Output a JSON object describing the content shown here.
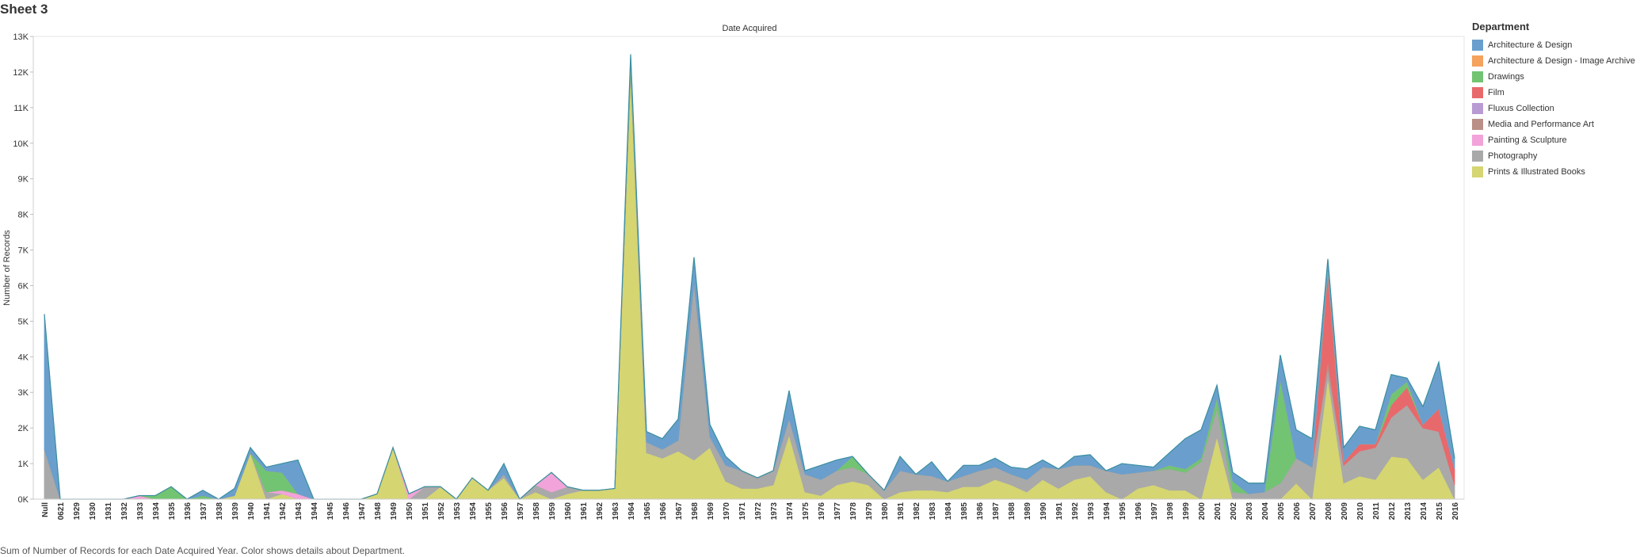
{
  "sheet_title": "Sheet 3",
  "caption": "Sum of Number of Records for each Date Acquired Year.  Color shows details about Department.",
  "legend": {
    "title": "Department",
    "items": [
      {
        "label": "Architecture & Design",
        "color": "#6a9fcd"
      },
      {
        "label": "Architecture & Design - Image Archive",
        "color": "#f5a25d"
      },
      {
        "label": "Drawings",
        "color": "#72c472"
      },
      {
        "label": "Film",
        "color": "#e8696b"
      },
      {
        "label": "Fluxus Collection",
        "color": "#b99bd3"
      },
      {
        "label": "Media and Performance Art",
        "color": "#b98f87"
      },
      {
        "label": "Painting & Sculpture",
        "color": "#f2a3d9"
      },
      {
        "label": "Photography",
        "color": "#a9a9a9"
      },
      {
        "label": "Prints & Illustrated Books",
        "color": "#d5d572"
      }
    ]
  },
  "chart_data": {
    "type": "area",
    "stacked": true,
    "title": "Date Acquired",
    "xlabel": "",
    "ylabel": "Number of Records",
    "ylim": [
      0,
      13000
    ],
    "y_ticks": [
      "0K",
      "1K",
      "2K",
      "3K",
      "4K",
      "5K",
      "6K",
      "7K",
      "8K",
      "9K",
      "10K",
      "11K",
      "12K",
      "13K"
    ],
    "grid": false,
    "legend_position": "right",
    "categories": [
      "Null",
      "0621",
      "1929",
      "1930",
      "1931",
      "1932",
      "1933",
      "1934",
      "1935",
      "1936",
      "1937",
      "1938",
      "1939",
      "1940",
      "1941",
      "1942",
      "1943",
      "1944",
      "1945",
      "1946",
      "1947",
      "1948",
      "1949",
      "1950",
      "1951",
      "1952",
      "1953",
      "1954",
      "1955",
      "1956",
      "1957",
      "1958",
      "1959",
      "1960",
      "1961",
      "1962",
      "1963",
      "1964",
      "1965",
      "1966",
      "1967",
      "1968",
      "1969",
      "1970",
      "1971",
      "1972",
      "1973",
      "1974",
      "1975",
      "1976",
      "1977",
      "1978",
      "1979",
      "1980",
      "1981",
      "1982",
      "1983",
      "1984",
      "1985",
      "1986",
      "1987",
      "1988",
      "1989",
      "1990",
      "1991",
      "1992",
      "1993",
      "1994",
      "1995",
      "1996",
      "1997",
      "1998",
      "1999",
      "2000",
      "2001",
      "2002",
      "2003",
      "2004",
      "2005",
      "2006",
      "2007",
      "2008",
      "2009",
      "2010",
      "2011",
      "2012",
      "2013",
      "2014",
      "2015",
      "2016"
    ],
    "x_labels": [
      "Null",
      "0621",
      "1929",
      "1930",
      "1931",
      "1932",
      "1933",
      "1934",
      "1935",
      "1936",
      "1937",
      "1938",
      "1939",
      "1940",
      "1941",
      "1942",
      "1943",
      "1944",
      "1945",
      "1946",
      "1947",
      "1948",
      "1949",
      "1950",
      "1951",
      "1952",
      "1953",
      "1954",
      "1955",
      "1956",
      "1957",
      "1958",
      "1959",
      "1960",
      "1961",
      "1962",
      "1963",
      "1964",
      "1965",
      "1966",
      "1967",
      "1968",
      "1969",
      "1970",
      "1971",
      "1972",
      "1973",
      "1974",
      "1975",
      "1976",
      "1977",
      "1978",
      "1979",
      "1980",
      "1981",
      "1982",
      "1983",
      "1984",
      "1985",
      "1986",
      "1987",
      "1988",
      "1989",
      "1990",
      "1991",
      "1992",
      "1993",
      "1994",
      "1995",
      "1996",
      "1997",
      "1998",
      "1999",
      "2000",
      "2001",
      "2002",
      "2003",
      "2004",
      "2005",
      "2006",
      "2007",
      "2008",
      "2009",
      "2010",
      "2011",
      "2012",
      "2013",
      "2014",
      "2015",
      "2016"
    ],
    "series": [
      {
        "name": "Prints & Illustrated Books",
        "color": "#d5d572",
        "values": [
          0,
          0,
          0,
          0,
          0,
          0,
          0,
          0,
          0,
          0,
          0,
          0,
          100,
          1300,
          0,
          150,
          0,
          0,
          0,
          0,
          0,
          150,
          1450,
          0,
          0,
          350,
          0,
          600,
          250,
          600,
          0,
          200,
          0,
          150,
          250,
          250,
          300,
          12000,
          1300,
          1150,
          1350,
          1100,
          1450,
          500,
          300,
          300,
          400,
          1800,
          200,
          100,
          400,
          500,
          400,
          0,
          200,
          250,
          250,
          200,
          350,
          350,
          550,
          400,
          200,
          550,
          300,
          550,
          650,
          200,
          0,
          300,
          400,
          250,
          250,
          0,
          1750,
          0,
          0,
          0,
          0,
          450,
          0,
          3400,
          450,
          650,
          550,
          1200,
          1150,
          550,
          900,
          0
        ]
      },
      {
        "name": "Photography",
        "color": "#a9a9a9",
        "values": [
          1400,
          0,
          0,
          0,
          0,
          0,
          0,
          0,
          0,
          0,
          0,
          0,
          0,
          0,
          200,
          0,
          0,
          0,
          0,
          0,
          0,
          0,
          0,
          0,
          350,
          0,
          0,
          0,
          0,
          100,
          0,
          200,
          200,
          200,
          0,
          0,
          0,
          0,
          300,
          250,
          300,
          5000,
          300,
          450,
          500,
          300,
          400,
          450,
          500,
          450,
          400,
          400,
          300,
          250,
          600,
          450,
          400,
          300,
          300,
          450,
          350,
          300,
          350,
          350,
          550,
          400,
          300,
          600,
          700,
          450,
          400,
          600,
          500,
          1050,
          800,
          200,
          150,
          200,
          450,
          700,
          900,
          250,
          500,
          700,
          900,
          1100,
          1500,
          1450,
          1000,
          400
        ]
      },
      {
        "name": "Painting & Sculpture",
        "color": "#f2a3d9",
        "values": [
          0,
          0,
          0,
          0,
          0,
          0,
          100,
          0,
          0,
          0,
          0,
          0,
          0,
          0,
          0,
          100,
          150,
          0,
          0,
          0,
          0,
          0,
          0,
          150,
          0,
          0,
          0,
          0,
          0,
          0,
          0,
          0,
          550,
          0,
          0,
          0,
          0,
          0,
          0,
          0,
          0,
          0,
          0,
          0,
          0,
          0,
          0,
          0,
          0,
          0,
          0,
          0,
          0,
          0,
          0,
          0,
          0,
          0,
          0,
          0,
          0,
          0,
          0,
          0,
          0,
          0,
          0,
          0,
          0,
          0,
          0,
          0,
          0,
          0,
          0,
          0,
          0,
          0,
          0,
          0,
          0,
          0,
          0,
          0,
          0,
          0,
          0,
          0,
          0,
          0
        ]
      },
      {
        "name": "Media and Performance Art",
        "color": "#b98f87",
        "values": [
          0,
          0,
          0,
          0,
          0,
          0,
          0,
          0,
          0,
          0,
          0,
          0,
          0,
          0,
          0,
          0,
          0,
          0,
          0,
          0,
          0,
          0,
          0,
          0,
          0,
          0,
          0,
          0,
          0,
          0,
          0,
          0,
          0,
          0,
          0,
          0,
          0,
          0,
          0,
          0,
          0,
          0,
          0,
          0,
          0,
          0,
          0,
          0,
          0,
          0,
          0,
          0,
          0,
          0,
          0,
          0,
          0,
          0,
          0,
          0,
          0,
          0,
          0,
          0,
          0,
          0,
          0,
          0,
          0,
          0,
          0,
          0,
          0,
          0,
          0,
          0,
          0,
          0,
          0,
          0,
          0,
          250,
          0,
          0,
          0,
          0,
          0,
          0,
          0,
          0
        ]
      },
      {
        "name": "Film",
        "color": "#e8696b",
        "values": [
          0,
          0,
          0,
          0,
          0,
          0,
          0,
          0,
          0,
          0,
          0,
          0,
          0,
          0,
          0,
          0,
          0,
          0,
          0,
          0,
          0,
          0,
          0,
          0,
          0,
          0,
          0,
          0,
          0,
          0,
          0,
          0,
          0,
          0,
          0,
          0,
          0,
          0,
          0,
          0,
          0,
          0,
          0,
          0,
          0,
          0,
          0,
          0,
          0,
          0,
          0,
          0,
          0,
          0,
          0,
          0,
          0,
          0,
          0,
          0,
          0,
          0,
          0,
          0,
          0,
          0,
          0,
          0,
          0,
          0,
          0,
          0,
          0,
          0,
          0,
          0,
          0,
          0,
          0,
          0,
          0,
          2500,
          100,
          200,
          100,
          350,
          500,
          100,
          650,
          450
        ]
      },
      {
        "name": "Fluxus Collection",
        "color": "#b99bd3",
        "values": [
          0,
          0,
          0,
          0,
          0,
          0,
          0,
          0,
          0,
          0,
          0,
          0,
          0,
          0,
          0,
          0,
          0,
          0,
          0,
          0,
          0,
          0,
          0,
          0,
          0,
          0,
          0,
          0,
          0,
          0,
          0,
          0,
          0,
          0,
          0,
          0,
          0,
          0,
          0,
          0,
          0,
          0,
          0,
          0,
          0,
          0,
          0,
          0,
          0,
          0,
          0,
          0,
          0,
          0,
          0,
          0,
          0,
          0,
          0,
          0,
          0,
          0,
          0,
          0,
          0,
          0,
          0,
          0,
          0,
          0,
          0,
          0,
          0,
          0,
          0,
          0,
          0,
          0,
          0,
          0,
          0,
          0,
          0,
          0,
          0,
          0,
          0,
          0,
          0,
          0
        ]
      },
      {
        "name": "Drawings",
        "color": "#72c472",
        "values": [
          0,
          0,
          0,
          0,
          0,
          0,
          0,
          100,
          350,
          0,
          100,
          0,
          0,
          0,
          600,
          500,
          0,
          0,
          0,
          0,
          0,
          0,
          0,
          0,
          0,
          0,
          0,
          0,
          0,
          0,
          0,
          0,
          0,
          0,
          0,
          0,
          0,
          300,
          0,
          0,
          0,
          0,
          0,
          0,
          0,
          0,
          0,
          0,
          0,
          0,
          0,
          300,
          0,
          0,
          0,
          0,
          0,
          0,
          0,
          0,
          0,
          0,
          0,
          0,
          0,
          0,
          0,
          0,
          0,
          0,
          0,
          100,
          100,
          100,
          300,
          300,
          0,
          0,
          2900,
          0,
          0,
          100,
          0,
          0,
          0,
          300,
          150,
          0,
          0,
          0
        ]
      },
      {
        "name": "Architecture & Design - Image Archive",
        "color": "#f5a25d",
        "values": [
          0,
          0,
          0,
          0,
          0,
          0,
          0,
          0,
          0,
          0,
          0,
          0,
          0,
          0,
          0,
          0,
          0,
          0,
          0,
          0,
          0,
          0,
          0,
          0,
          0,
          0,
          0,
          0,
          0,
          0,
          0,
          0,
          0,
          0,
          0,
          0,
          0,
          0,
          0,
          0,
          0,
          0,
          0,
          0,
          0,
          0,
          0,
          0,
          0,
          0,
          0,
          0,
          0,
          0,
          0,
          0,
          0,
          0,
          0,
          0,
          0,
          0,
          0,
          0,
          0,
          0,
          0,
          0,
          0,
          0,
          0,
          0,
          0,
          0,
          0,
          0,
          0,
          0,
          0,
          0,
          0,
          0,
          0,
          0,
          0,
          0,
          0,
          0,
          0,
          0
        ]
      },
      {
        "name": "Architecture & Design",
        "color": "#6a9fcd",
        "values": [
          3800,
          0,
          0,
          0,
          0,
          0,
          0,
          0,
          0,
          0,
          150,
          0,
          200,
          150,
          100,
          250,
          950,
          0,
          0,
          0,
          0,
          0,
          0,
          0,
          0,
          0,
          0,
          0,
          0,
          300,
          0,
          0,
          0,
          0,
          0,
          0,
          0,
          200,
          300,
          300,
          600,
          700,
          350,
          250,
          0,
          0,
          0,
          800,
          100,
          400,
          300,
          0,
          0,
          0,
          400,
          0,
          400,
          0,
          300,
          150,
          250,
          200,
          300,
          200,
          0,
          250,
          300,
          0,
          300,
          200,
          100,
          350,
          850,
          800,
          350,
          250,
          300,
          250,
          700,
          800,
          800,
          250,
          400,
          500,
          400,
          550,
          100,
          500,
          1300,
          300
        ]
      }
    ]
  }
}
